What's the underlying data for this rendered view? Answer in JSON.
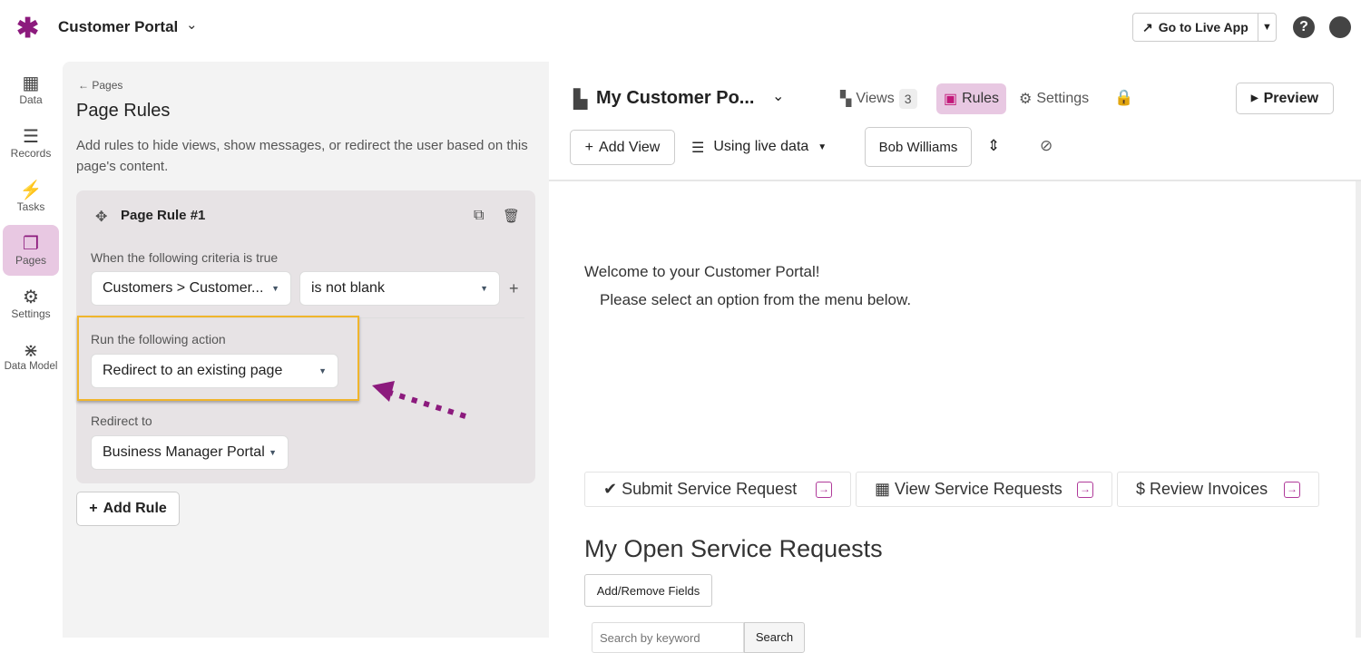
{
  "app": {
    "title": "Customer Portal",
    "go_live": "Go to Live App",
    "help": "?",
    "accent": "#8c1a7d"
  },
  "nav": [
    {
      "label": "Data",
      "icon": "table-icon"
    },
    {
      "label": "Records",
      "icon": "database-icon"
    },
    {
      "label": "Tasks",
      "icon": "bolt-icon"
    },
    {
      "label": "Pages",
      "icon": "pages-icon",
      "active": true
    },
    {
      "label": "Settings",
      "icon": "gear-icon"
    },
    {
      "label": "Data Model",
      "icon": "graph-icon"
    }
  ],
  "panel": {
    "back": "Pages",
    "title": "Page Rules",
    "description": "Add rules to hide views, show messages, or redirect the user based on this page's content.",
    "rule": {
      "title": "Page Rule #1",
      "criteria_label": "When the following criteria is true",
      "field": "Customers > Customer...",
      "operator": "is not blank",
      "action_label": "Run the following action",
      "action": "Redirect to an existing page",
      "redirect_label": "Redirect to",
      "redirect": "Business Manager Portal"
    },
    "add_rule": "Add Rule"
  },
  "page": {
    "title": "My Customer Po...",
    "tabs": {
      "views": "Views",
      "views_count": "3",
      "rules": "Rules",
      "settings": "Settings"
    },
    "preview": "Preview",
    "add_view": "Add View",
    "data_source": "Using live data",
    "user": "Bob Williams"
  },
  "content": {
    "welcome": "Welcome to your Customer Portal!",
    "instruction": "Please select an option from the menu below.",
    "menu": [
      {
        "label": "Submit Service Request",
        "icon": "✔"
      },
      {
        "label": "View Service Requests",
        "icon": "▦"
      },
      {
        "label": "Review Invoices",
        "icon": "$"
      }
    ],
    "section_title": "My Open Service Requests",
    "add_remove": "Add/Remove Fields",
    "search_placeholder": "Search by keyword",
    "search_btn": "Search"
  }
}
